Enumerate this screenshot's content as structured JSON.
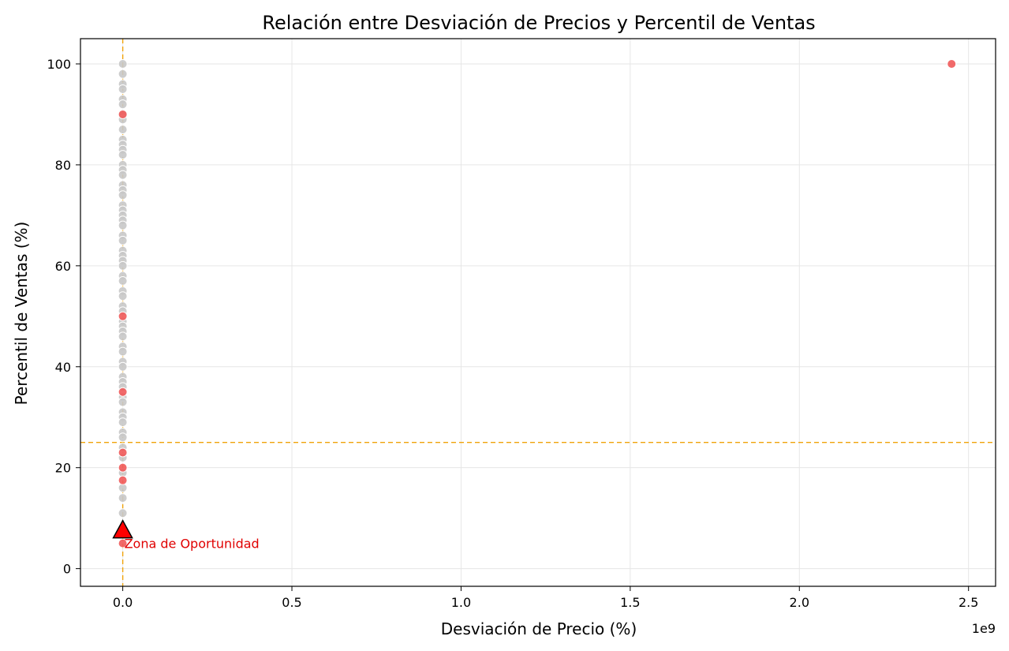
{
  "chart_data": {
    "type": "scatter",
    "title": "Relación entre Desviación de Precios y Percentil de Ventas",
    "xlabel": "Desviación de Precio (%)",
    "ylabel": "Percentil de Ventas (%)",
    "x_offset_label": "1e9",
    "xlim": [
      -125000000,
      2580000000
    ],
    "ylim": [
      -3.5,
      105
    ],
    "xticks": [
      0,
      0.5,
      1.0,
      1.5,
      2.0,
      2.5
    ],
    "xtick_labels": [
      "0.0",
      "0.5",
      "1.0",
      "1.5",
      "2.0",
      "2.5"
    ],
    "yticks": [
      0,
      20,
      40,
      60,
      80,
      100
    ],
    "ytick_labels": [
      "0",
      "20",
      "40",
      "60",
      "80",
      "100"
    ],
    "grid": true,
    "reference_lines": {
      "x": 0,
      "y": 25,
      "color": "#f0a30a",
      "style": "dashed"
    },
    "colors": {
      "normal": "#c8c8c8",
      "highlight": "#f05a5a",
      "annotation": "#e00000",
      "marker": "#ff0000"
    },
    "series": [
      {
        "role": "normal",
        "x": [
          0,
          0,
          0,
          0,
          0,
          0,
          0,
          0,
          0,
          0,
          0,
          0,
          0,
          0,
          0,
          0,
          0,
          0,
          0,
          0,
          0,
          0,
          0,
          0,
          0,
          0,
          0,
          0,
          0,
          0,
          0,
          0,
          0,
          0,
          0,
          0,
          0,
          0,
          0,
          0,
          0,
          0,
          0,
          0,
          0,
          0,
          0,
          0,
          0,
          0,
          0,
          0,
          0,
          0,
          0,
          0,
          0,
          0,
          0,
          0
        ],
        "y": [
          100,
          98,
          96,
          95,
          93,
          92,
          90,
          89,
          87,
          85,
          84,
          83,
          82,
          80,
          79,
          78,
          76,
          75,
          74,
          72,
          71,
          70,
          69,
          68,
          66,
          65,
          63,
          62,
          61,
          60,
          58,
          57,
          55,
          54,
          52,
          51,
          49,
          48,
          47,
          46,
          44,
          43,
          41,
          40,
          38,
          37,
          36,
          34,
          33,
          31,
          30,
          29,
          27,
          26,
          24,
          22,
          19,
          16,
          14,
          11
        ]
      },
      {
        "role": "highlight",
        "x": [
          0,
          0,
          0,
          0,
          0,
          0,
          0,
          2450000000
        ],
        "y": [
          90,
          50,
          35,
          23,
          20,
          17.5,
          5,
          100
        ]
      }
    ],
    "annotation": {
      "text": "Zona de Oportunidad",
      "x": 0,
      "y": 5,
      "arrow_tip": [
        0,
        7.5
      ]
    }
  }
}
